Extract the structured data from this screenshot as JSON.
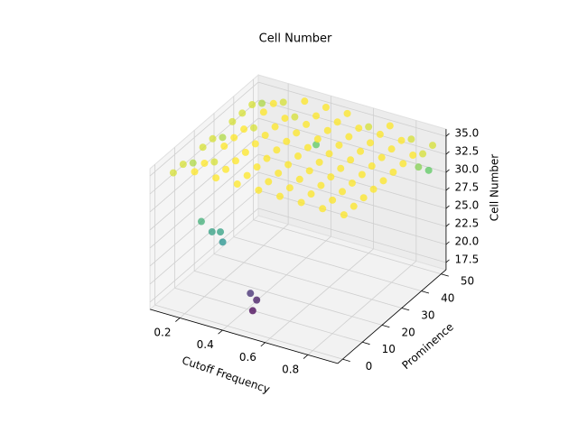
{
  "chart_data": {
    "type": "scatter3d",
    "title": "Cell Number",
    "xlabel": "Cutoff Frequency",
    "ylabel": "Prominence",
    "zlabel": "Cell Number",
    "colormap": "viridis",
    "xlim": [
      0.06,
      0.94
    ],
    "ylim": [
      -2.5,
      52.5
    ],
    "zlim": [
      16.5,
      36
    ],
    "xticks": [
      0.2,
      0.4,
      0.6,
      0.8
    ],
    "yticks": [
      0,
      10,
      20,
      30,
      40,
      50
    ],
    "zticks": [
      17.5,
      {
        "value": 20,
        "label": "20.0"
      },
      22.5,
      {
        "value": 25,
        "label": "25.0"
      },
      27.5,
      {
        "value": 30,
        "label": "30.0"
      },
      32.5,
      {
        "value": 35,
        "label": "35.0"
      }
    ],
    "x": [
      0.1,
      0.1,
      0.1,
      0.1,
      0.1,
      0.1,
      0.1,
      0.1,
      0.1,
      0.1,
      0.2,
      0.2,
      0.2,
      0.2,
      0.2,
      0.2,
      0.2,
      0.2,
      0.2,
      0.2,
      0.3,
      0.3,
      0.3,
      0.3,
      0.3,
      0.3,
      0.3,
      0.3,
      0.3,
      0.3,
      0.4,
      0.4,
      0.4,
      0.4,
      0.4,
      0.4,
      0.4,
      0.4,
      0.4,
      0.4,
      0.5,
      0.5,
      0.5,
      0.5,
      0.5,
      0.5,
      0.5,
      0.5,
      0.5,
      0.5,
      0.6,
      0.6,
      0.6,
      0.6,
      0.6,
      0.6,
      0.6,
      0.6,
      0.6,
      0.6,
      0.7,
      0.7,
      0.7,
      0.7,
      0.7,
      0.7,
      0.7,
      0.7,
      0.7,
      0.7,
      0.8,
      0.8,
      0.8,
      0.8,
      0.8,
      0.8,
      0.8,
      0.8,
      0.8,
      0.8,
      0.9,
      0.9,
      0.9,
      0.9,
      0.9,
      0.9,
      0.9,
      0.9,
      0.9,
      0.9,
      0.5,
      0.5,
      0.48,
      0.35,
      0.3,
      0.33,
      0.25,
      0.9,
      0.88,
      0.4
    ],
    "y": [
      5,
      10,
      15,
      20,
      25,
      30,
      35,
      40,
      45,
      50,
      5,
      10,
      15,
      20,
      25,
      30,
      35,
      40,
      45,
      50,
      5,
      10,
      15,
      20,
      25,
      30,
      35,
      40,
      45,
      50,
      5,
      10,
      15,
      20,
      25,
      30,
      35,
      40,
      45,
      50,
      5,
      10,
      15,
      20,
      25,
      30,
      35,
      40,
      45,
      50,
      5,
      10,
      15,
      20,
      25,
      30,
      35,
      40,
      45,
      50,
      5,
      10,
      15,
      20,
      25,
      30,
      35,
      40,
      45,
      50,
      5,
      10,
      15,
      20,
      25,
      30,
      35,
      40,
      45,
      50,
      5,
      10,
      15,
      20,
      25,
      30,
      35,
      40,
      45,
      50,
      2,
      4,
      3,
      3,
      3,
      4,
      3,
      48,
      45,
      45
    ],
    "z": [
      34,
      34,
      33,
      34,
      34,
      33,
      34,
      34,
      34,
      33,
      35,
      35,
      34,
      35,
      35,
      35,
      34,
      35,
      35,
      34,
      35,
      35,
      35,
      35,
      35,
      35,
      35,
      35,
      34,
      35,
      35,
      35,
      35,
      35,
      35,
      35,
      35,
      35,
      35,
      35,
      35,
      35,
      35,
      35,
      35,
      35,
      35,
      35,
      35,
      35,
      35,
      35,
      35,
      35,
      35,
      35,
      35,
      35,
      35,
      34,
      35,
      35,
      35,
      35,
      35,
      35,
      35,
      35,
      35,
      35,
      35,
      35,
      35,
      35,
      35,
      35,
      35,
      35,
      35,
      34,
      35,
      35,
      35,
      35,
      35,
      35,
      35,
      35,
      34,
      34,
      19,
      20,
      21,
      27,
      28,
      28,
      29,
      31,
      32,
      31
    ]
  }
}
